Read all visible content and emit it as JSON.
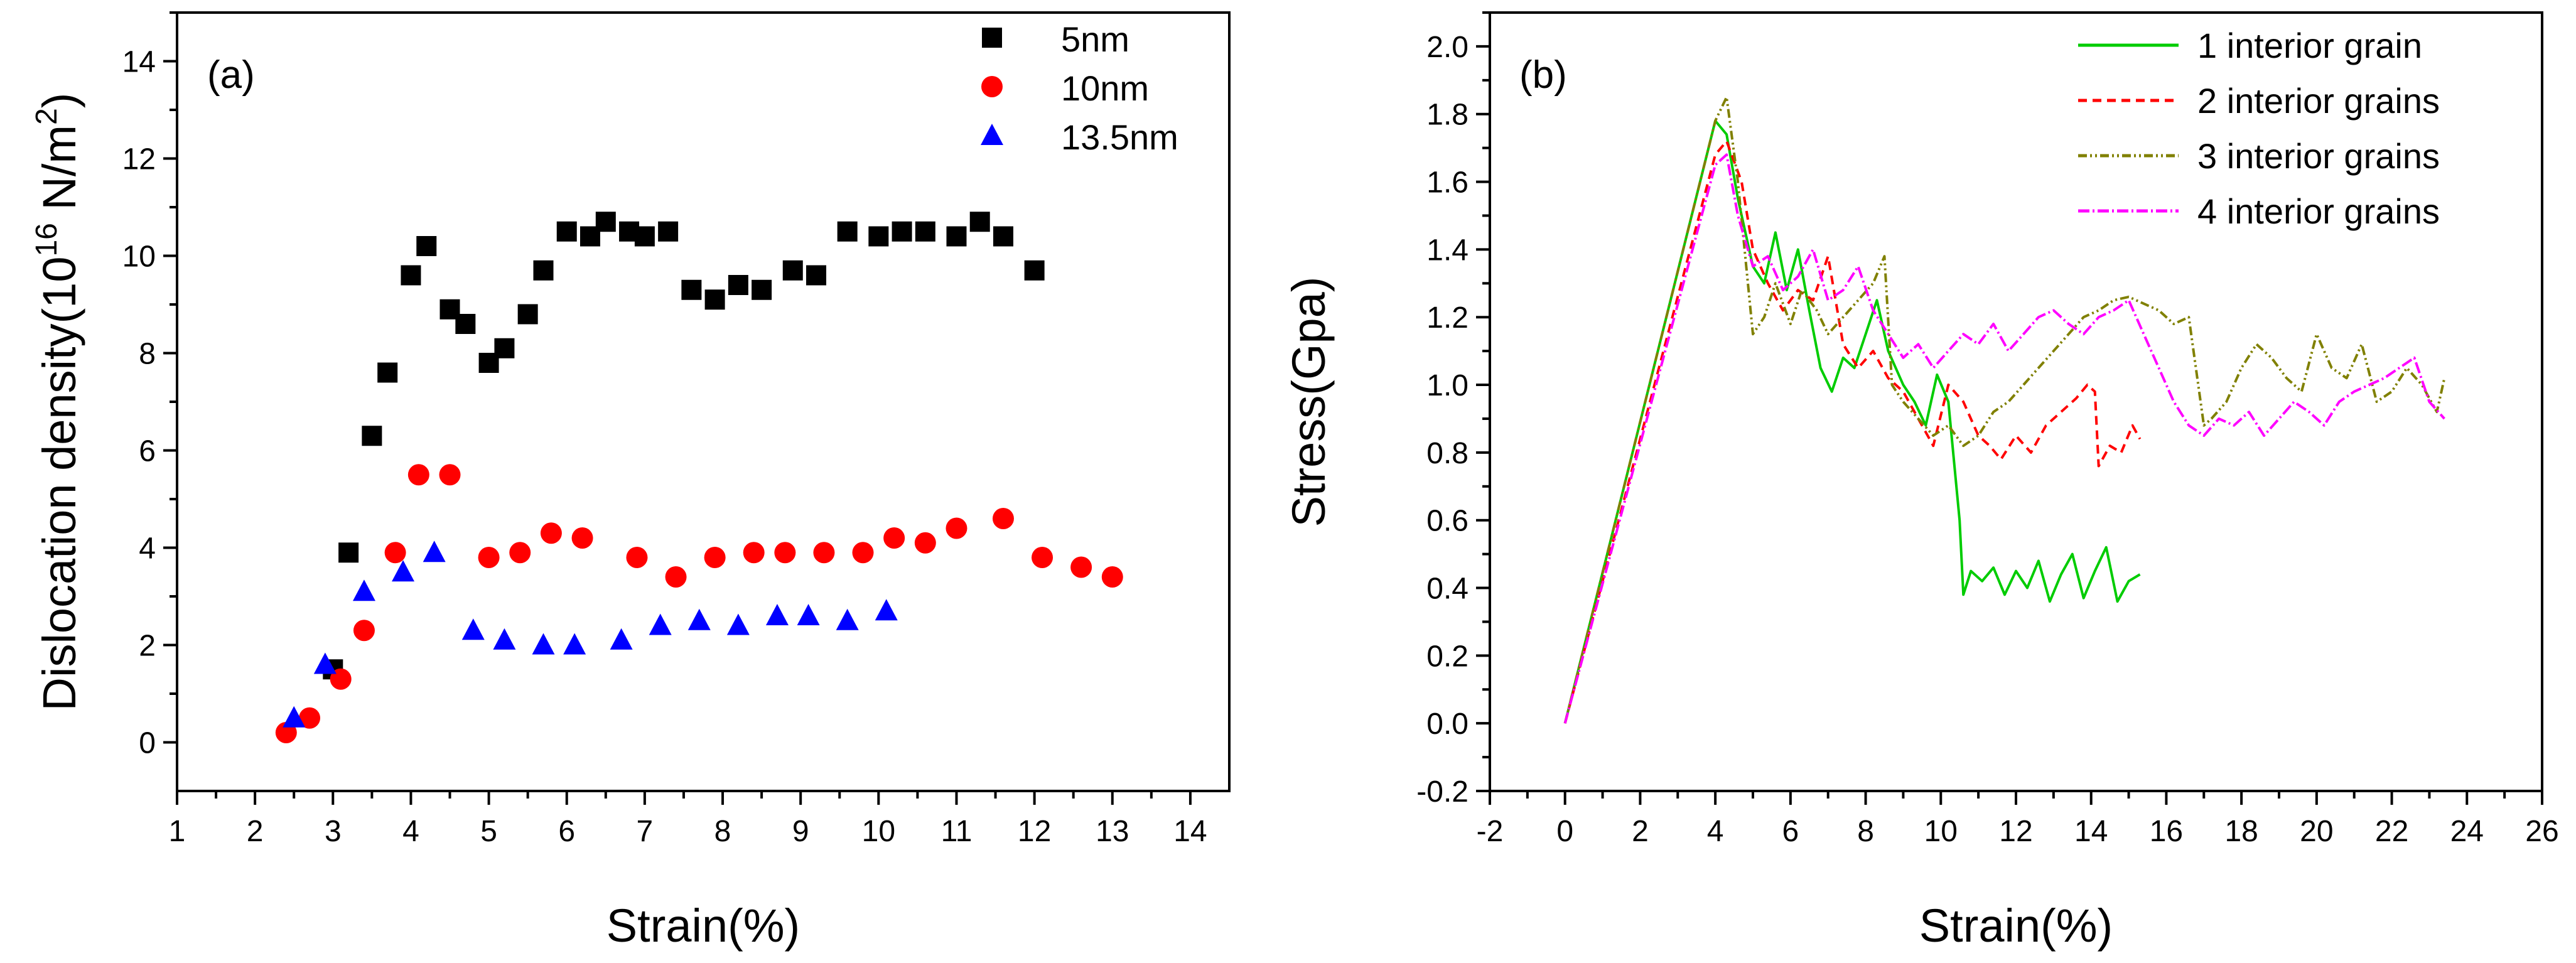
{
  "chart_data": [
    {
      "panel": "(a)",
      "type": "scatter",
      "xlabel": "Strain(%)",
      "ylabel": {
        "prefix": "Dislocation density(10",
        "exp1": "16",
        "mid": " N/m",
        "exp2": "2",
        "suffix": ")"
      },
      "xlim": [
        1,
        14.5
      ],
      "ylim": [
        -1,
        15
      ],
      "xticks": [
        1,
        2,
        3,
        4,
        5,
        6,
        7,
        8,
        9,
        10,
        11,
        12,
        13,
        14
      ],
      "yticks": [
        0,
        2,
        4,
        6,
        8,
        10,
        12,
        14
      ],
      "legend_position": "top-right",
      "series": [
        {
          "name": "5nm",
          "marker": "square",
          "color": "#000000",
          "x": [
            3.0,
            3.2,
            3.5,
            3.7,
            4.0,
            4.2,
            4.5,
            4.7,
            5.0,
            5.2,
            5.5,
            5.7,
            6.0,
            6.3,
            6.5,
            6.8,
            7.0,
            7.3,
            7.6,
            7.9,
            8.2,
            8.5,
            8.9,
            9.2,
            9.6,
            10.0,
            10.3,
            10.6,
            11.0,
            11.3,
            11.6,
            12.0
          ],
          "y": [
            1.5,
            3.9,
            6.3,
            7.6,
            9.6,
            10.2,
            8.9,
            8.6,
            7.8,
            8.1,
            8.8,
            9.7,
            10.5,
            10.4,
            10.7,
            10.5,
            10.4,
            10.5,
            9.3,
            9.1,
            9.4,
            9.3,
            9.7,
            9.6,
            10.5,
            10.4,
            10.5,
            10.5,
            10.4,
            10.7,
            10.4,
            9.7
          ]
        },
        {
          "name": "10nm",
          "marker": "circle",
          "color": "#ff0000",
          "x": [
            2.4,
            2.7,
            3.1,
            3.4,
            3.8,
            4.1,
            4.5,
            5.0,
            5.4,
            5.8,
            6.2,
            6.9,
            7.4,
            7.9,
            8.4,
            8.8,
            9.3,
            9.8,
            10.2,
            10.6,
            11.0,
            11.6,
            12.1,
            12.6,
            13.0
          ],
          "y": [
            0.2,
            0.5,
            1.3,
            2.3,
            3.9,
            5.5,
            5.5,
            3.8,
            3.9,
            4.3,
            4.2,
            3.8,
            3.4,
            3.8,
            3.9,
            3.9,
            3.9,
            3.9,
            4.2,
            4.1,
            4.4,
            4.6,
            3.8,
            3.6,
            3.4
          ]
        },
        {
          "name": "13.5nm",
          "marker": "triangle",
          "color": "#0000ff",
          "x": [
            2.5,
            2.9,
            3.4,
            3.9,
            4.3,
            4.8,
            5.2,
            5.7,
            6.1,
            6.7,
            7.2,
            7.7,
            8.2,
            8.7,
            9.1,
            9.6,
            10.1
          ],
          "y": [
            0.5,
            1.6,
            3.1,
            3.5,
            3.9,
            2.3,
            2.1,
            2.0,
            2.0,
            2.1,
            2.4,
            2.5,
            2.4,
            2.6,
            2.6,
            2.5,
            2.7
          ]
        }
      ]
    },
    {
      "panel": "(b)",
      "type": "line",
      "xlabel": "Strain(%)",
      "ylabel": "Stress(Gpa)",
      "xlim": [
        -2,
        26
      ],
      "ylim": [
        -0.2,
        2.1
      ],
      "xticks": [
        -2,
        0,
        2,
        4,
        6,
        8,
        10,
        12,
        14,
        16,
        18,
        20,
        22,
        24,
        26
      ],
      "yticks": [
        -0.2,
        0.0,
        0.2,
        0.4,
        0.6,
        0.8,
        1.0,
        1.2,
        1.4,
        1.6,
        1.8,
        2.0
      ],
      "ytick_labels": [
        "-0.2",
        "0.0",
        "0.2",
        "0.4",
        "0.6",
        "0.8",
        "1.0",
        "1.2",
        "1.4",
        "1.6",
        "1.8",
        "2.0"
      ],
      "legend_position": "top-right",
      "series": [
        {
          "name": "1 interior grain",
          "color": "#00cc00",
          "dash": "",
          "x": [
            0,
            4.0,
            4.3,
            4.6,
            5.0,
            5.3,
            5.6,
            5.9,
            6.2,
            6.5,
            6.8,
            7.1,
            7.4,
            7.7,
            8.0,
            8.3,
            8.6,
            9.0,
            9.3,
            9.6,
            9.9,
            10.2,
            10.5,
            10.6,
            10.8,
            11.1,
            11.4,
            11.7,
            12.0,
            12.3,
            12.6,
            12.9,
            13.2,
            13.5,
            13.8,
            14.1,
            14.4,
            14.7,
            15.0,
            15.3
          ],
          "y": [
            0,
            1.78,
            1.74,
            1.55,
            1.35,
            1.3,
            1.45,
            1.28,
            1.4,
            1.22,
            1.05,
            0.98,
            1.08,
            1.05,
            1.15,
            1.25,
            1.1,
            1.0,
            0.95,
            0.88,
            1.03,
            0.95,
            0.6,
            0.38,
            0.45,
            0.42,
            0.46,
            0.38,
            0.45,
            0.4,
            0.48,
            0.36,
            0.44,
            0.5,
            0.37,
            0.45,
            0.52,
            0.36,
            0.42,
            0.44
          ]
        },
        {
          "name": "2 interior grains",
          "color": "#ff0000",
          "dash": "14,9",
          "x": [
            0,
            4.0,
            4.3,
            4.7,
            5.0,
            5.4,
            5.8,
            6.2,
            6.6,
            7.0,
            7.4,
            7.8,
            8.2,
            8.6,
            9.0,
            9.4,
            9.8,
            10.2,
            10.6,
            11.0,
            11.3,
            11.6,
            12.0,
            12.4,
            12.8,
            13.2,
            13.6,
            13.9,
            14.1,
            14.2,
            14.5,
            14.8,
            15.1,
            15.3
          ],
          "y": [
            0,
            1.68,
            1.72,
            1.6,
            1.4,
            1.3,
            1.22,
            1.28,
            1.25,
            1.38,
            1.12,
            1.05,
            1.1,
            1.02,
            0.98,
            0.9,
            0.82,
            1.0,
            0.95,
            0.85,
            0.82,
            0.78,
            0.85,
            0.8,
            0.88,
            0.92,
            0.96,
            1.0,
            0.98,
            0.76,
            0.82,
            0.8,
            0.88,
            0.84
          ]
        },
        {
          "name": "3 interior grains",
          "color": "#808000",
          "dash": "14,5,3,5,3,5",
          "x": [
            0,
            4.0,
            4.3,
            4.6,
            5.0,
            5.3,
            5.6,
            6.0,
            6.3,
            6.7,
            7.0,
            7.4,
            7.8,
            8.2,
            8.5,
            8.7,
            9.0,
            9.4,
            9.8,
            10.2,
            10.6,
            11.0,
            11.4,
            11.8,
            12.2,
            12.6,
            13.0,
            13.4,
            13.8,
            14.2,
            14.6,
            15.0,
            15.4,
            15.8,
            16.2,
            16.6,
            17.0,
            17.2,
            17.6,
            18.0,
            18.4,
            18.8,
            19.2,
            19.6,
            20.0,
            20.4,
            20.8,
            21.2,
            21.6,
            22.0,
            22.4,
            22.8,
            23.2,
            23.4
          ],
          "y": [
            0,
            1.78,
            1.85,
            1.6,
            1.15,
            1.2,
            1.3,
            1.18,
            1.28,
            1.22,
            1.15,
            1.2,
            1.25,
            1.3,
            1.38,
            1.0,
            0.95,
            0.9,
            0.85,
            0.88,
            0.82,
            0.85,
            0.92,
            0.95,
            1.0,
            1.05,
            1.1,
            1.15,
            1.2,
            1.22,
            1.25,
            1.26,
            1.24,
            1.22,
            1.18,
            1.2,
            0.88,
            0.9,
            0.95,
            1.05,
            1.12,
            1.08,
            1.02,
            0.98,
            1.15,
            1.05,
            1.02,
            1.12,
            0.95,
            0.98,
            1.05,
            1.0,
            0.92,
            1.02
          ]
        },
        {
          "name": "4 interior grains",
          "color": "#ff00ff",
          "dash": "18,5,3,5",
          "x": [
            0,
            4.0,
            4.3,
            4.6,
            5.0,
            5.4,
            5.8,
            6.2,
            6.6,
            7.0,
            7.4,
            7.8,
            8.2,
            8.6,
            9.0,
            9.4,
            9.8,
            10.2,
            10.6,
            11.0,
            11.4,
            11.8,
            12.2,
            12.6,
            13.0,
            13.4,
            13.8,
            14.2,
            14.6,
            15.0,
            15.4,
            15.8,
            16.2,
            16.6,
            17.0,
            17.4,
            17.8,
            18.2,
            18.6,
            19.0,
            19.4,
            19.8,
            20.2,
            20.6,
            21.0,
            21.4,
            21.8,
            22.2,
            22.6,
            23.0,
            23.4
          ],
          "y": [
            0,
            1.65,
            1.68,
            1.5,
            1.35,
            1.38,
            1.28,
            1.32,
            1.4,
            1.25,
            1.28,
            1.35,
            1.22,
            1.15,
            1.08,
            1.12,
            1.05,
            1.1,
            1.15,
            1.12,
            1.18,
            1.1,
            1.15,
            1.2,
            1.22,
            1.18,
            1.15,
            1.2,
            1.22,
            1.25,
            1.15,
            1.05,
            0.95,
            0.88,
            0.85,
            0.9,
            0.88,
            0.92,
            0.85,
            0.9,
            0.95,
            0.92,
            0.88,
            0.95,
            0.98,
            1.0,
            1.02,
            1.05,
            1.08,
            0.95,
            0.9
          ]
        }
      ]
    }
  ]
}
